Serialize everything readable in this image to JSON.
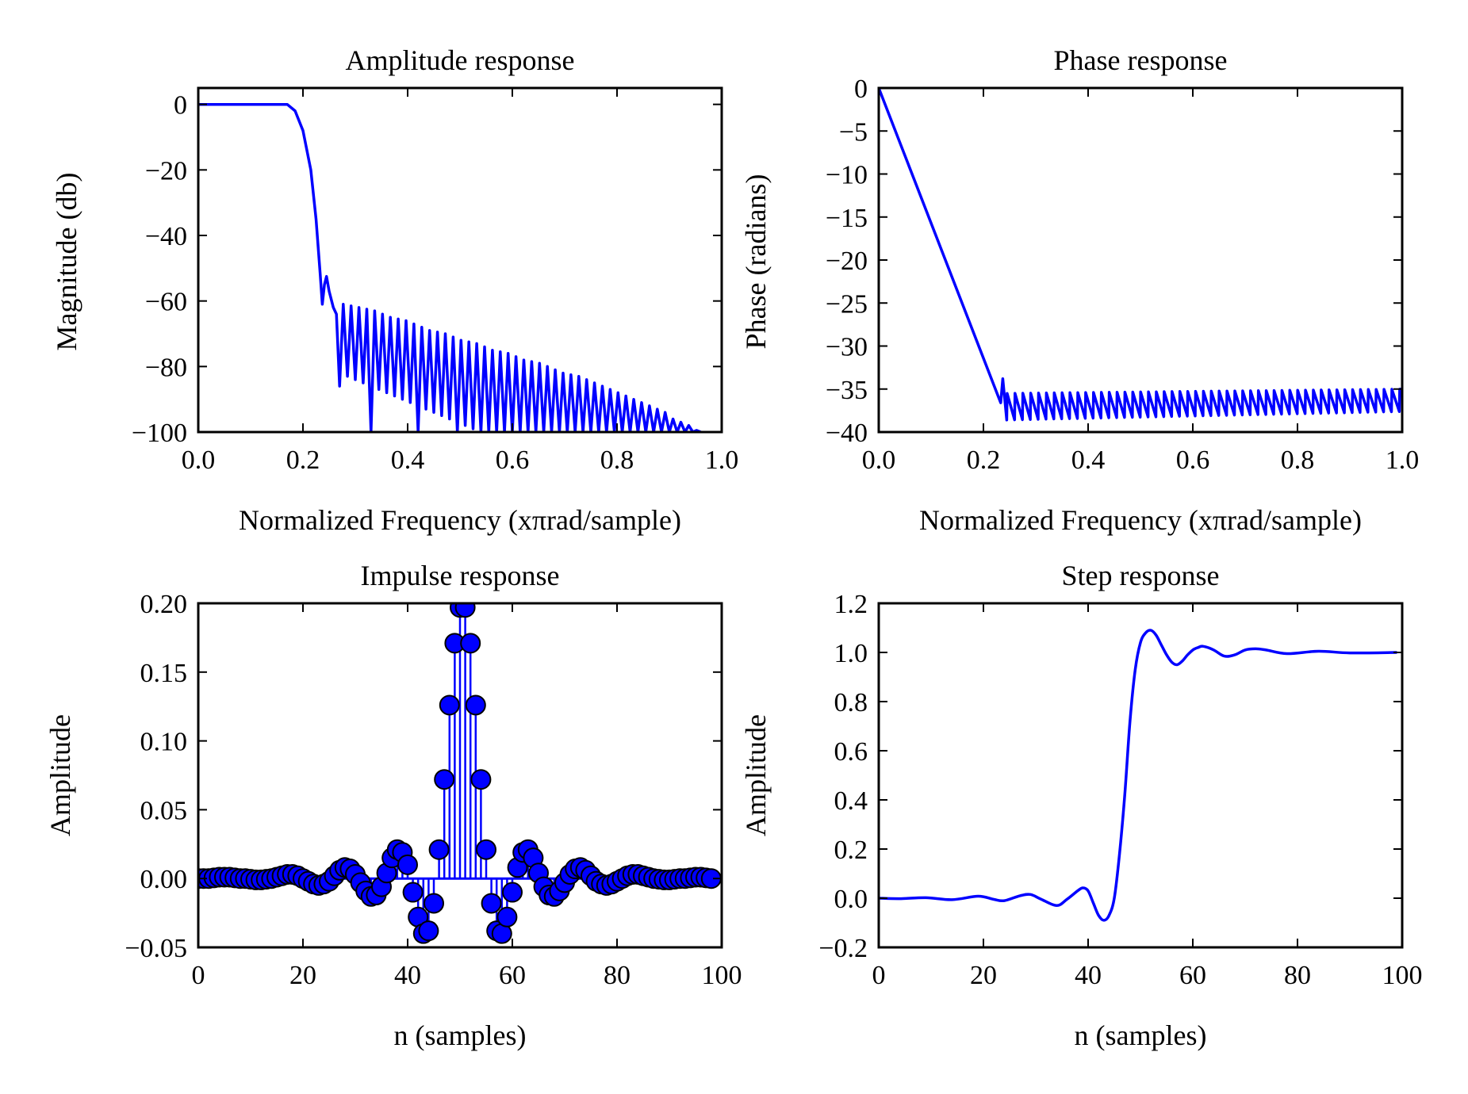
{
  "figure": {
    "background": "#ffffff",
    "line_color": "#0000ff"
  },
  "chart_data": [
    {
      "type": "line",
      "title": "Amplitude response",
      "xlabel": "Normalized Frequency (xπrad/sample)",
      "ylabel": "Magnitude (db)",
      "xlim": [
        0.0,
        1.0
      ],
      "ylim": [
        -100,
        5
      ],
      "xticks": [
        0.0,
        0.2,
        0.4,
        0.6,
        0.8,
        1.0
      ],
      "xtick_labels": [
        "0.0",
        "0.2",
        "0.4",
        "0.6",
        "0.8",
        "1.0"
      ],
      "yticks": [
        0,
        -20,
        -40,
        -60,
        -80,
        -100
      ],
      "ytick_labels": [
        "0",
        "−20",
        "−40",
        "−60",
        "−80",
        "−100"
      ],
      "grid": false,
      "series": [
        {
          "color": "#0000ff",
          "passband": {
            "x_end": 0.17,
            "value": 0
          },
          "transition": [
            [
              0.17,
              0
            ],
            [
              0.185,
              -2
            ],
            [
              0.2,
              -8
            ],
            [
              0.215,
              -20
            ],
            [
              0.225,
              -35
            ],
            [
              0.233,
              -52
            ],
            [
              0.237,
              -61
            ]
          ],
          "first_sidelobe": [
            [
              0.237,
              -61
            ],
            [
              0.241,
              -55
            ],
            [
              0.245,
              -52.5
            ],
            [
              0.25,
              -57
            ],
            [
              0.258,
              -62
            ],
            [
              0.264,
              -64
            ]
          ],
          "lobe_peaks": [
            [
              0.277,
              -61
            ],
            [
              0.292,
              -61.5
            ],
            [
              0.307,
              -62
            ],
            [
              0.322,
              -62.5
            ],
            [
              0.337,
              -63
            ],
            [
              0.352,
              -64
            ],
            [
              0.367,
              -65
            ],
            [
              0.382,
              -65.5
            ],
            [
              0.397,
              -66
            ],
            [
              0.412,
              -67
            ],
            [
              0.427,
              -68
            ],
            [
              0.442,
              -69
            ],
            [
              0.457,
              -69.5
            ],
            [
              0.472,
              -70
            ],
            [
              0.487,
              -71
            ],
            [
              0.502,
              -72
            ],
            [
              0.517,
              -72.5
            ],
            [
              0.532,
              -73
            ],
            [
              0.547,
              -74
            ],
            [
              0.562,
              -75
            ],
            [
              0.577,
              -75.5
            ],
            [
              0.592,
              -76
            ],
            [
              0.607,
              -77
            ],
            [
              0.622,
              -78
            ],
            [
              0.637,
              -78.5
            ],
            [
              0.652,
              -79
            ],
            [
              0.667,
              -80
            ],
            [
              0.682,
              -81
            ],
            [
              0.697,
              -82
            ],
            [
              0.712,
              -82.5
            ],
            [
              0.727,
              -83
            ],
            [
              0.742,
              -84
            ],
            [
              0.757,
              -85
            ],
            [
              0.772,
              -86
            ],
            [
              0.787,
              -87
            ],
            [
              0.802,
              -88
            ],
            [
              0.817,
              -89
            ],
            [
              0.832,
              -90
            ],
            [
              0.847,
              -91
            ],
            [
              0.862,
              -92
            ],
            [
              0.877,
              -93
            ],
            [
              0.892,
              -94
            ],
            [
              0.907,
              -96
            ],
            [
              0.922,
              -97
            ],
            [
              0.937,
              -98
            ],
            [
              0.952,
              -99.5
            ]
          ],
          "nulls": [
            [
              0.27,
              -86
            ],
            [
              0.285,
              -83
            ],
            [
              0.3,
              -84
            ],
            [
              0.315,
              -85
            ],
            [
              0.33,
              -100
            ],
            [
              0.345,
              -87
            ],
            [
              0.36,
              -88
            ],
            [
              0.375,
              -89
            ],
            [
              0.39,
              -90
            ],
            [
              0.405,
              -91
            ],
            [
              0.42,
              -100
            ],
            [
              0.435,
              -93
            ],
            [
              0.45,
              -94
            ],
            [
              0.465,
              -95
            ],
            [
              0.48,
              -96
            ],
            [
              0.495,
              -100
            ],
            [
              0.51,
              -98
            ],
            [
              0.525,
              -99
            ],
            [
              0.54,
              -100
            ],
            [
              0.555,
              -100
            ],
            [
              0.57,
              -100
            ],
            [
              0.585,
              -100
            ],
            [
              0.6,
              -100
            ],
            [
              0.615,
              -100
            ],
            [
              0.63,
              -100
            ],
            [
              0.645,
              -100
            ],
            [
              0.66,
              -100
            ],
            [
              0.675,
              -100
            ],
            [
              0.69,
              -100
            ],
            [
              0.705,
              -100
            ],
            [
              0.72,
              -100
            ],
            [
              0.735,
              -100
            ],
            [
              0.75,
              -100
            ],
            [
              0.765,
              -100
            ],
            [
              0.78,
              -100
            ],
            [
              0.795,
              -100
            ],
            [
              0.81,
              -100
            ],
            [
              0.825,
              -100
            ],
            [
              0.84,
              -100
            ],
            [
              0.855,
              -100
            ],
            [
              0.87,
              -100
            ],
            [
              0.885,
              -100
            ],
            [
              0.9,
              -100
            ],
            [
              0.915,
              -100
            ],
            [
              0.93,
              -100
            ],
            [
              0.945,
              -100
            ],
            [
              0.96,
              -100
            ]
          ]
        }
      ]
    },
    {
      "type": "line",
      "title": "Phase response",
      "xlabel": "Normalized Frequency (xπrad/sample)",
      "ylabel": "Phase (radians)",
      "xlim": [
        0.0,
        1.0
      ],
      "ylim": [
        -40,
        0
      ],
      "xticks": [
        0.0,
        0.2,
        0.4,
        0.6,
        0.8,
        1.0
      ],
      "xtick_labels": [
        "0.0",
        "0.2",
        "0.4",
        "0.6",
        "0.8",
        "1.0"
      ],
      "yticks": [
        0,
        -5,
        -10,
        -15,
        -20,
        -25,
        -30,
        -35,
        -40
      ],
      "ytick_labels": [
        "0",
        "−5",
        "−10",
        "−15",
        "−20",
        "−25",
        "−30",
        "−35",
        "−40"
      ],
      "grid": false,
      "series": [
        {
          "color": "#0000ff",
          "linear_segment": [
            [
              0.0,
              0.0
            ],
            [
              0.233,
              -36.6
            ]
          ],
          "jump_after_segment": [
            0.237,
            -33.8
          ],
          "sawtooth": {
            "x_start": 0.237,
            "x_end": 0.995,
            "period": 0.015,
            "low": -38.6,
            "high_start": -35.5,
            "high_end": -35.0,
            "low_end": -37.6
          },
          "endpoint": [
            1.0,
            -35.0
          ]
        }
      ]
    },
    {
      "type": "scatter",
      "title": "Impulse response",
      "xlabel": "n (samples)",
      "ylabel": "Amplitude",
      "xlim": [
        0,
        100
      ],
      "ylim": [
        -0.05,
        0.2
      ],
      "xticks": [
        0,
        20,
        40,
        60,
        80,
        100
      ],
      "xtick_labels": [
        "0",
        "20",
        "40",
        "60",
        "80",
        "100"
      ],
      "yticks": [
        0.2,
        0.15,
        0.1,
        0.05,
        0.0,
        -0.05
      ],
      "ytick_labels": [
        "0.20",
        "0.15",
        "0.10",
        "0.05",
        "0.00",
        "−0.05"
      ],
      "grid": false,
      "style": "stem",
      "series": [
        {
          "color": "#0000ff",
          "marker_color": "#0000ff",
          "x": [
            0,
            1,
            2,
            3,
            4,
            5,
            6,
            7,
            8,
            9,
            10,
            11,
            12,
            13,
            14,
            15,
            16,
            17,
            18,
            19,
            20,
            21,
            22,
            23,
            24,
            25,
            26,
            27,
            28,
            29,
            30,
            31,
            32,
            33,
            34,
            35,
            36,
            37,
            38,
            39,
            40,
            41,
            42,
            43,
            44,
            45,
            46,
            47,
            48,
            49,
            50,
            51,
            52,
            53,
            54,
            55,
            56,
            57,
            58,
            59,
            60,
            61,
            62,
            63,
            64,
            65,
            66,
            67,
            68,
            69,
            70,
            71,
            72,
            73,
            74,
            75,
            76,
            77,
            78,
            79,
            80,
            81,
            82,
            83,
            84,
            85,
            86,
            87,
            88,
            89,
            90,
            91,
            92,
            93,
            94,
            95,
            96,
            97,
            98
          ],
          "values": [
            0.0,
            0.0,
            0.0,
            0.0005,
            0.001,
            0.001,
            0.001,
            0.0005,
            0.0,
            0.0,
            -0.0005,
            -0.001,
            -0.001,
            -0.0005,
            0.0,
            0.001,
            0.002,
            0.003,
            0.003,
            0.002,
            0.0,
            -0.002,
            -0.004,
            -0.005,
            -0.004,
            -0.002,
            0.002,
            0.006,
            0.008,
            0.007,
            0.003,
            -0.003,
            -0.009,
            -0.013,
            -0.012,
            -0.006,
            0.004,
            0.015,
            0.021,
            0.019,
            0.01,
            -0.01,
            -0.028,
            -0.04,
            -0.038,
            -0.018,
            0.021,
            0.072,
            0.126,
            0.171,
            0.197,
            0.197,
            0.171,
            0.126,
            0.072,
            0.021,
            -0.018,
            -0.038,
            -0.04,
            -0.028,
            -0.01,
            0.008,
            0.019,
            0.021,
            0.015,
            0.004,
            -0.006,
            -0.012,
            -0.013,
            -0.009,
            -0.003,
            0.003,
            0.007,
            0.008,
            0.006,
            0.002,
            -0.002,
            -0.004,
            -0.005,
            -0.004,
            -0.002,
            0.0,
            0.002,
            0.003,
            0.003,
            0.002,
            0.001,
            0.0,
            -0.0005,
            -0.001,
            -0.001,
            -0.0005,
            0.0,
            0.0,
            0.0005,
            0.001,
            0.001,
            0.0005,
            0.0
          ]
        }
      ]
    },
    {
      "type": "line",
      "title": "Step response",
      "xlabel": "n (samples)",
      "ylabel": "Amplitude",
      "xlim": [
        0,
        100
      ],
      "ylim": [
        -0.2,
        1.2
      ],
      "xticks": [
        0,
        20,
        40,
        60,
        80,
        100
      ],
      "xtick_labels": [
        "0",
        "20",
        "40",
        "60",
        "80",
        "100"
      ],
      "yticks": [
        1.2,
        1.0,
        0.8,
        0.6,
        0.4,
        0.2,
        0.0,
        -0.2
      ],
      "ytick_labels": [
        "1.2",
        "1.0",
        "0.8",
        "0.6",
        "0.4",
        "0.2",
        "0.0",
        "−0.2"
      ],
      "grid": false,
      "series": [
        {
          "color": "#0000ff",
          "x": [
            0,
            4,
            9,
            14,
            19,
            22,
            24,
            27,
            29,
            31,
            34,
            36,
            38,
            39,
            40,
            41,
            42,
            43,
            44,
            45,
            46,
            47,
            48,
            49,
            50,
            51,
            52,
            53,
            54,
            55,
            56,
            57,
            58,
            59,
            60,
            61,
            62,
            64,
            66,
            68,
            70,
            72,
            74,
            78,
            84,
            90,
            99
          ],
          "values": [
            0.0,
            -0.002,
            0.002,
            -0.006,
            0.008,
            -0.005,
            -0.01,
            0.01,
            0.015,
            -0.004,
            -0.03,
            -0.004,
            0.03,
            0.042,
            0.03,
            -0.02,
            -0.07,
            -0.09,
            -0.07,
            0.0,
            0.18,
            0.42,
            0.72,
            0.93,
            1.04,
            1.08,
            1.09,
            1.07,
            1.03,
            0.99,
            0.96,
            0.95,
            0.965,
            0.99,
            1.01,
            1.02,
            1.025,
            1.01,
            0.985,
            0.99,
            1.01,
            1.015,
            1.01,
            0.995,
            1.005,
            0.998,
            1.0
          ]
        }
      ]
    }
  ]
}
